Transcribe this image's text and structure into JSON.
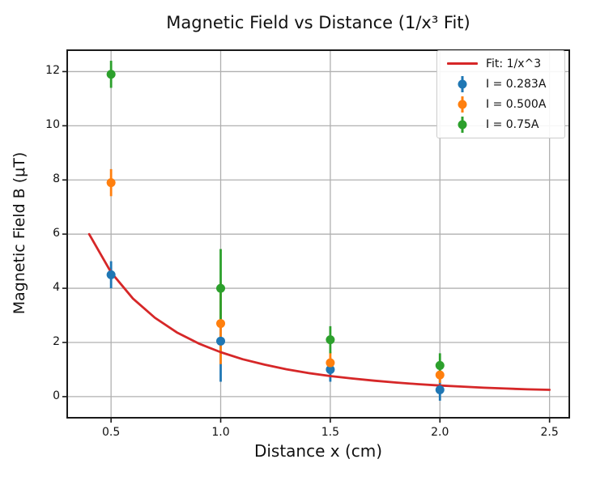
{
  "chart_data": {
    "type": "scatter",
    "title": "Magnetic Field vs Distance (1/x³ Fit)",
    "xlabel": "Distance x (cm)",
    "ylabel": "Magnetic Field B (μT)",
    "xlim": [
      0.3,
      2.59
    ],
    "ylim": [
      -0.78,
      12.79
    ],
    "grid": true,
    "grid_color": "#b0b0b0",
    "axis_color": "#1a1a1a",
    "background_color": "#ffffff",
    "legend_position": "upper right",
    "xticks": {
      "values": [
        0.5,
        1.0,
        1.5,
        2.0,
        2.5
      ],
      "labels": [
        "0.5",
        "1.0",
        "1.5",
        "2.0",
        "2.5"
      ]
    },
    "yticks": {
      "values": [
        0,
        2,
        4,
        6,
        8,
        10,
        12
      ],
      "labels": [
        "0",
        "2",
        "4",
        "6",
        "8",
        "10",
        "12"
      ]
    },
    "series": [
      {
        "name": "I = 0.283A",
        "color": "#1f77b4",
        "x": [
          0.5,
          1.0,
          1.5,
          2.0
        ],
        "y": [
          4.5,
          2.05,
          1.0,
          0.25
        ],
        "yerr": [
          0.5,
          1.5,
          0.45,
          0.4
        ]
      },
      {
        "name": "I = 0.500A",
        "color": "#ff7f0e",
        "x": [
          0.5,
          1.0,
          1.5,
          2.0
        ],
        "y": [
          7.9,
          2.7,
          1.25,
          0.8
        ],
        "yerr": [
          0.5,
          1.5,
          0.4,
          0.3
        ]
      },
      {
        "name": "I = 0.75A",
        "color": "#2ca02c",
        "x": [
          0.5,
          1.0,
          1.5,
          2.0
        ],
        "y": [
          11.9,
          4.0,
          2.1,
          1.15
        ],
        "yerr": [
          0.5,
          1.45,
          0.5,
          0.45
        ]
      }
    ],
    "fit": {
      "label": "Fit: 1/x^3",
      "color": "#d62728",
      "x_range": [
        0.4,
        2.5
      ],
      "points": [
        [
          0.4,
          6.0
        ],
        [
          0.5,
          4.59
        ],
        [
          0.6,
          3.62
        ],
        [
          0.7,
          2.91
        ],
        [
          0.8,
          2.37
        ],
        [
          0.9,
          1.96
        ],
        [
          1.0,
          1.64
        ],
        [
          1.1,
          1.38
        ],
        [
          1.2,
          1.18
        ],
        [
          1.3,
          1.01
        ],
        [
          1.4,
          0.87
        ],
        [
          1.5,
          0.76
        ],
        [
          1.6,
          0.67
        ],
        [
          1.7,
          0.59
        ],
        [
          1.8,
          0.52
        ],
        [
          1.9,
          0.46
        ],
        [
          2.0,
          0.41
        ],
        [
          2.1,
          0.37
        ],
        [
          2.2,
          0.33
        ],
        [
          2.3,
          0.3
        ],
        [
          2.4,
          0.27
        ],
        [
          2.5,
          0.25
        ]
      ]
    }
  }
}
